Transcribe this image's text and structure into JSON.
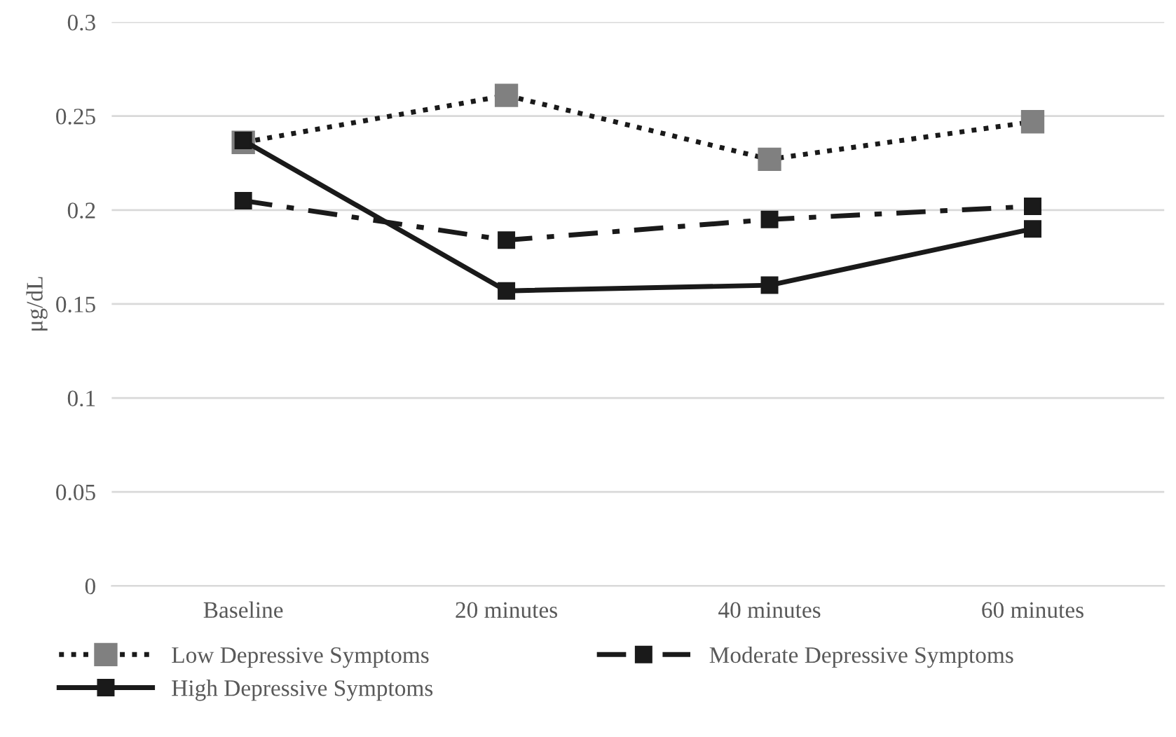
{
  "chart_data": {
    "type": "line",
    "ylabel": "μg/dL",
    "categories": [
      "Baseline",
      "20 minutes",
      "40 minutes",
      "60 minutes"
    ],
    "series": [
      {
        "name": "Low Depressive Symptoms",
        "color": "#808080",
        "line_style": "dotted",
        "values": [
          0.236,
          0.261,
          0.227,
          0.247
        ]
      },
      {
        "name": "Moderate Depressive Symptoms",
        "color": "#1a1a1a",
        "line_style": "dashed",
        "values": [
          0.205,
          0.184,
          0.195,
          0.202
        ]
      },
      {
        "name": "High Depressive Symptoms",
        "color": "#1a1a1a",
        "line_style": "solid",
        "values": [
          0.237,
          0.157,
          0.16,
          0.19
        ]
      }
    ],
    "ylim": [
      0,
      0.3
    ],
    "yticks": [
      {
        "value": 0,
        "label": "0"
      },
      {
        "value": 0.05,
        "label": "0.05"
      },
      {
        "value": 0.1,
        "label": "0.1"
      },
      {
        "value": 0.15,
        "label": "0.15"
      },
      {
        "value": 0.2,
        "label": "0.2"
      },
      {
        "value": 0.25,
        "label": "0.25"
      },
      {
        "value": 0.3,
        "label": "0.3"
      }
    ],
    "grid": "y",
    "legend": "bottom",
    "marker": "square"
  }
}
